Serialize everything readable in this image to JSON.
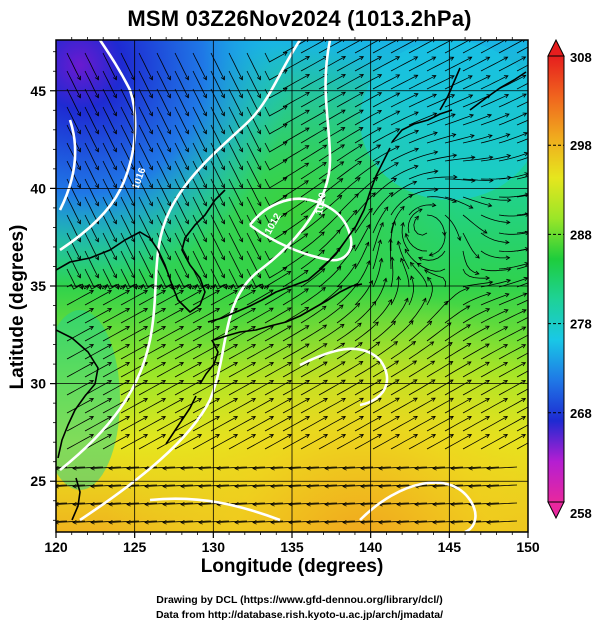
{
  "title": "MSM 03Z26Nov2024 (1013.2hPa)",
  "chart_data": {
    "type": "heatmap",
    "title": "MSM 03Z26Nov2024 (1013.2hPa)",
    "xlabel": "Longitude (degrees)",
    "ylabel": "Latitude  (degrees)",
    "xlim": [
      120,
      150
    ],
    "ylim": [
      22.4,
      47.6
    ],
    "xticks": [
      "120",
      "125",
      "130",
      "135",
      "140",
      "145",
      "150"
    ],
    "yticks": [
      "25",
      "30",
      "35",
      "40",
      "45"
    ],
    "grid": true,
    "colorbar": {
      "range": [
        258,
        308
      ],
      "ticks": [
        "258",
        "268",
        "278",
        "288",
        "298",
        "308"
      ],
      "colors": [
        "#e8289e",
        "#b41ed2",
        "#1e2ad2",
        "#1f78e6",
        "#19c8e6",
        "#1ed296",
        "#1ecd3c",
        "#9be628",
        "#e6e61e",
        "#f0aa1e",
        "#f0641e",
        "#e61e1e"
      ]
    },
    "contour_labels": [
      "1016",
      "1020",
      "1012"
    ],
    "overlays": [
      "wind streamlines",
      "isobar contours (white)",
      "coastlines"
    ]
  },
  "credits": {
    "line1": "Drawing by DCL (https://www.gfd-dennou.org/library/dcl/)",
    "line2": "Data from http://database.rish.kyoto-u.ac.jp/arch/jmadata/"
  }
}
